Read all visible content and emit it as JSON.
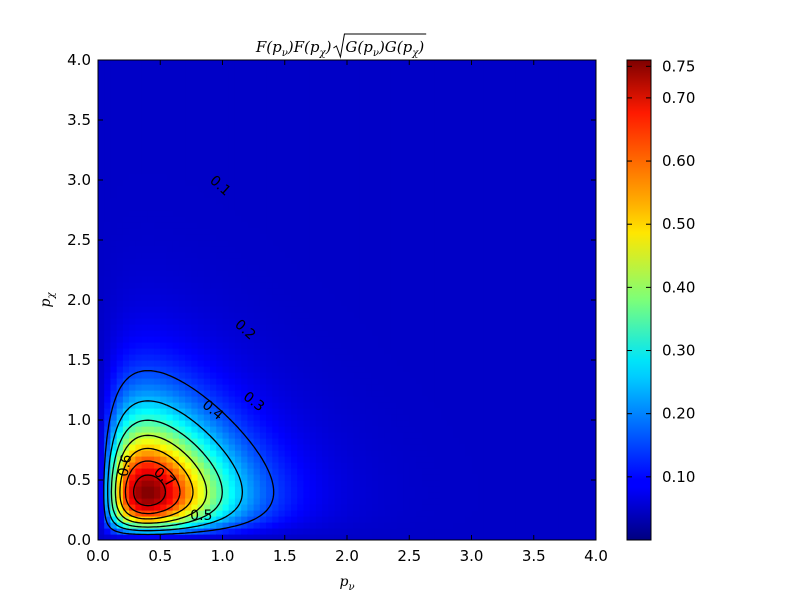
{
  "chart_data": {
    "type": "heatmap",
    "title": "F(p_ν)F(p_χ)√(G(p_ν)G(p_χ))",
    "title_parts": {
      "prefix": "F(p",
      "sub_nu": "ν",
      "mid1": ")F(p",
      "sub_chi": "χ",
      "mid2": ")",
      "sqrt_body_a": "G(p",
      "sqrt_mid": ")G(p",
      "sqrt_end": ")"
    },
    "xlabel": {
      "base": "p",
      "sub": "ν"
    },
    "ylabel": {
      "base": "p",
      "sub": "χ"
    },
    "xlim": [
      0.0,
      4.0
    ],
    "ylim": [
      0.0,
      4.0
    ],
    "xticks": [
      "0.0",
      "0.5",
      "1.0",
      "1.5",
      "2.0",
      "2.5",
      "3.0",
      "3.5",
      "4.0"
    ],
    "yticks": [
      "0.0",
      "0.5",
      "1.0",
      "1.5",
      "2.0",
      "2.5",
      "3.0",
      "3.5",
      "4.0"
    ],
    "colormap": "jet",
    "color_range": [
      0.0,
      0.76
    ],
    "colorbar_ticks": [
      "0.10",
      "0.20",
      "0.30",
      "0.40",
      "0.50",
      "0.60",
      "0.70",
      "0.75"
    ],
    "peak": {
      "x": 0.4,
      "y": 0.4,
      "value": 0.76
    },
    "contour_levels": [
      0.1,
      0.2,
      0.3,
      0.4,
      0.5,
      0.6,
      0.7
    ],
    "contour_labels": [
      {
        "text": "0.1",
        "x": 0.98,
        "y": 2.95,
        "rotate": 42
      },
      {
        "text": "0.2",
        "x": 1.18,
        "y": 1.75,
        "rotate": 42
      },
      {
        "text": "0.3",
        "x": 1.25,
        "y": 1.15,
        "rotate": 38
      },
      {
        "text": "0.4",
        "x": 0.92,
        "y": 1.08,
        "rotate": 40
      },
      {
        "text": "0.5",
        "x": 0.83,
        "y": 0.2,
        "rotate": 0
      },
      {
        "text": "0.6",
        "x": 0.22,
        "y": 0.62,
        "rotate": -80
      },
      {
        "text": "0.7",
        "x": 0.53,
        "y": 0.52,
        "rotate": 40
      }
    ],
    "grid": false,
    "legend": "colorbar-right"
  }
}
